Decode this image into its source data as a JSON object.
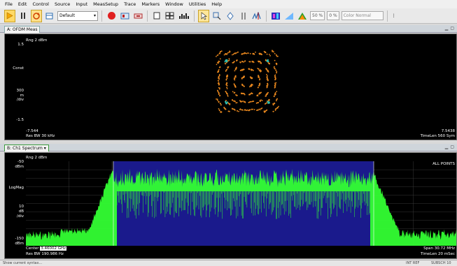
{
  "menu": [
    "File",
    "Edit",
    "Control",
    "Source",
    "Input",
    "MeasSetup",
    "Trace",
    "Markers",
    "Window",
    "Utilities",
    "Help"
  ],
  "toolbar": {
    "layout_value": "Default",
    "pct1": "50 %",
    "pct2": "0 %",
    "color_mode": "Color Normal"
  },
  "window_a": {
    "tab": "A: OFDM Meas",
    "range": "Rng 2 dBm",
    "y_top": "1.5",
    "y_mid": "Const",
    "scale_value": "300",
    "scale_unit": "m",
    "scale_div": "/div",
    "y_bottom": "-1.5",
    "x_left": "-7.544",
    "res_bw": "Res BW 30 kHz",
    "x_right": "7.5438",
    "time_len": "TimeLen 560 Sym"
  },
  "window_b": {
    "tab": "B: Ch1 Spectrum",
    "range": "Rng 2 dBm",
    "y_top": "-50",
    "y_top_unit": "dBm",
    "y_mid": "LogMag",
    "scale_value": "10",
    "scale_unit": "dB",
    "scale_div": "/div",
    "y_bottom": "-150",
    "y_bottom_unit": "dBm",
    "all_points": "ALL POINTS",
    "center_label": "Center",
    "center_value": "3.46002 GHz",
    "res_bw": "Res BW 190.986 Hz",
    "span": "Span 30.72 MHz",
    "time_len": "TimeLen 20 mSec"
  },
  "status": {
    "message": "Show current syntax...",
    "right1": "INT REF",
    "right2": "SUBSCH 10"
  },
  "colors": {
    "constellation": "#e8871e",
    "pilot": "#2ec4b6",
    "spectrum_trace": "#33ff33",
    "band_fill": "#1a1a8c"
  }
}
